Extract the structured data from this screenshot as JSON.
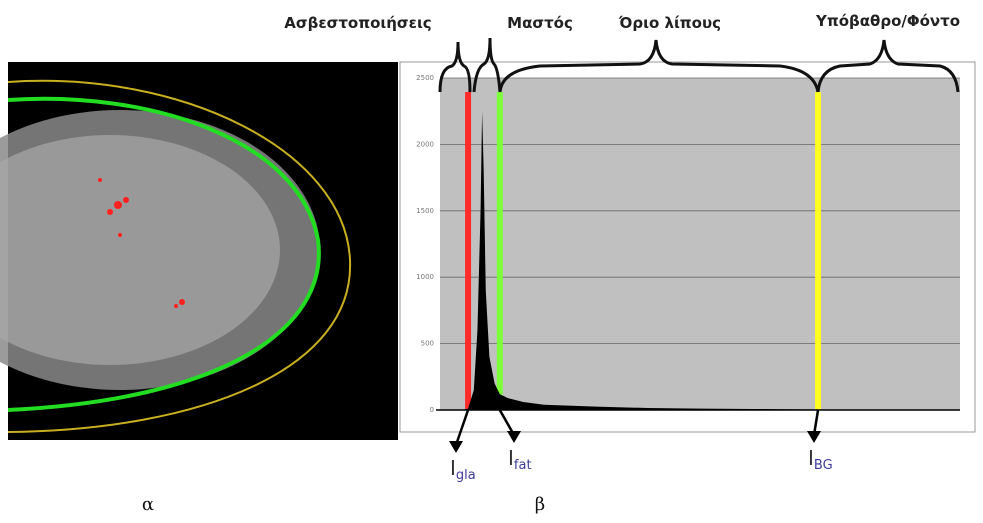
{
  "chart_data": {
    "type": "area",
    "x": [
      0,
      40,
      54,
      65,
      72,
      78,
      81,
      84,
      88,
      95,
      105,
      115,
      130,
      160,
      200,
      300,
      400,
      500,
      600,
      700,
      800,
      900,
      1000
    ],
    "series": [
      {
        "color": "#000000",
        "values": [
          0,
          0,
          10,
          150,
          600,
          1500,
          2250,
          1800,
          900,
          400,
          200,
          120,
          90,
          60,
          40,
          25,
          15,
          10,
          8,
          5,
          3,
          2,
          1
        ]
      }
    ],
    "xlim": [
      0,
      1000
    ],
    "ylim": [
      0,
      2500
    ],
    "yticks": [
      0,
      500,
      1000,
      1500,
      2000,
      2500
    ],
    "grid": true,
    "background": "#c0c0c0",
    "thresholds": [
      {
        "x": 54,
        "color": "#ff2a2a",
        "label": {
          "main": "I",
          "sub": "gla"
        }
      },
      {
        "x": 115,
        "color": "#7cff3a",
        "label": {
          "main": "I",
          "sub": "fat"
        }
      },
      {
        "x": 727,
        "color": "#ffff22",
        "label": {
          "main": "I",
          "sub": "BG"
        }
      }
    ]
  },
  "regions": [
    "Ασβεστοποιήσεις",
    "Μαστός",
    "Όριο λίπους",
    "Υπόβαθρο/Φόντο"
  ],
  "captions": [
    "α",
    "β"
  ]
}
